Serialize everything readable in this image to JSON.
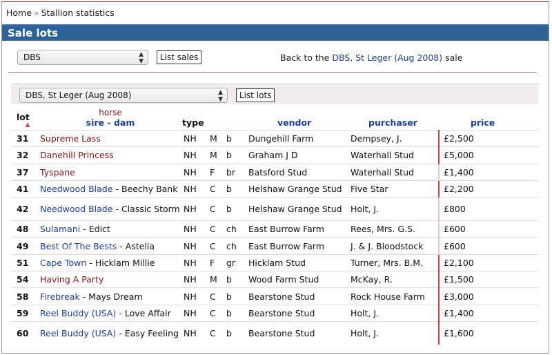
{
  "breadcrumb": {
    "home": "Home",
    "separator": "»",
    "current": "Stallion statistics"
  },
  "title": "Sale lots",
  "sales_select": {
    "value": "DBS"
  },
  "list_sales_label": "List sales",
  "back": {
    "prefix": "Back to the",
    "link": "DBS, St Leger (Aug 2008)",
    "suffix": "sale"
  },
  "lots_select": {
    "value": "DBS, St Leger (Aug 2008)"
  },
  "list_lots_label": "List lots",
  "columns": {
    "lot": "lot",
    "horse": "horse",
    "sire": "sire",
    "dash": "-",
    "dam": "dam",
    "type": "type",
    "vendor": "vendor",
    "purchaser": "purchaser",
    "price": "price"
  },
  "rows": [
    {
      "lot": "31",
      "sire": "Supreme Lass",
      "dam": "",
      "t1": "NH",
      "t2": "M",
      "t3": "b",
      "vendor": "Dungehill Farm",
      "purchaser": "Dempsey, J.",
      "price": "£2,500"
    },
    {
      "lot": "32",
      "sire": "Danehill Princess",
      "dam": "",
      "t1": "NH",
      "t2": "M",
      "t3": "b",
      "vendor": "Graham J D",
      "purchaser": "Waterhall Stud",
      "price": "£5,000"
    },
    {
      "lot": "37",
      "sire": "Tyspane",
      "dam": "",
      "t1": "NH",
      "t2": "F",
      "t3": "br",
      "vendor": "Batsford Stud",
      "purchaser": "Waterhall Stud",
      "price": "£1,400"
    },
    {
      "lot": "41",
      "sire": "Needwood Blade",
      "dam": "Beechy Bank",
      "t1": "NH",
      "t2": "C",
      "t3": "b",
      "vendor": "Helshaw Grange Stud",
      "purchaser": "Five Star",
      "price": "£2,200"
    },
    {
      "lot": "42",
      "sire": "Needwood Blade",
      "dam": "Classic Storm",
      "t1": "NH",
      "t2": "C",
      "t3": "b",
      "vendor": "Helshaw Grange Stud",
      "purchaser": "Holt, J.",
      "price": "£800"
    },
    {
      "lot": "48",
      "sire": "Sulamani",
      "dam": "Edict",
      "t1": "NH",
      "t2": "C",
      "t3": "ch",
      "vendor": "East Burrow Farm",
      "purchaser": "Rees, Mrs. G.S.",
      "price": "£600"
    },
    {
      "lot": "49",
      "sire": "Best Of The Bests",
      "dam": "Astelia",
      "t1": "NH",
      "t2": "C",
      "t3": "ch",
      "vendor": "East Burrow Farm",
      "purchaser": "J. & J. Bloodstock",
      "price": "£600"
    },
    {
      "lot": "51",
      "sire": "Cape Town",
      "dam": "Hicklam Millie",
      "t1": "NH",
      "t2": "F",
      "t3": "gr",
      "vendor": "Hicklam Stud",
      "purchaser": "Turner, Mrs. B.M.",
      "price": "£2,100"
    },
    {
      "lot": "54",
      "sire": "Having A Party",
      "dam": "",
      "t1": "NH",
      "t2": "M",
      "t3": "b",
      "vendor": "Wood Farm Stud",
      "purchaser": "McKay, R.",
      "price": "£1,500"
    },
    {
      "lot": "58",
      "sire": "Firebreak",
      "dam": "Mays Dream",
      "t1": "NH",
      "t2": "C",
      "t3": "b",
      "vendor": "Bearstone Stud",
      "purchaser": "Rock House Farm",
      "price": "£3,000"
    },
    {
      "lot": "59",
      "sire": "Reel Buddy (USA)",
      "dam": "Love Affair",
      "t1": "NH",
      "t2": "C",
      "t3": "b",
      "vendor": "Bearstone Stud",
      "purchaser": "Holt, J.",
      "price": "£1,400"
    },
    {
      "lot": "60",
      "sire": "Reel Buddy (USA)",
      "dam": "Easy Feeling",
      "t1": "NH",
      "t2": "C",
      "t3": "b",
      "vendor": "Bearstone Stud",
      "purchaser": "Holt, J.",
      "price": "£1,600"
    }
  ]
}
